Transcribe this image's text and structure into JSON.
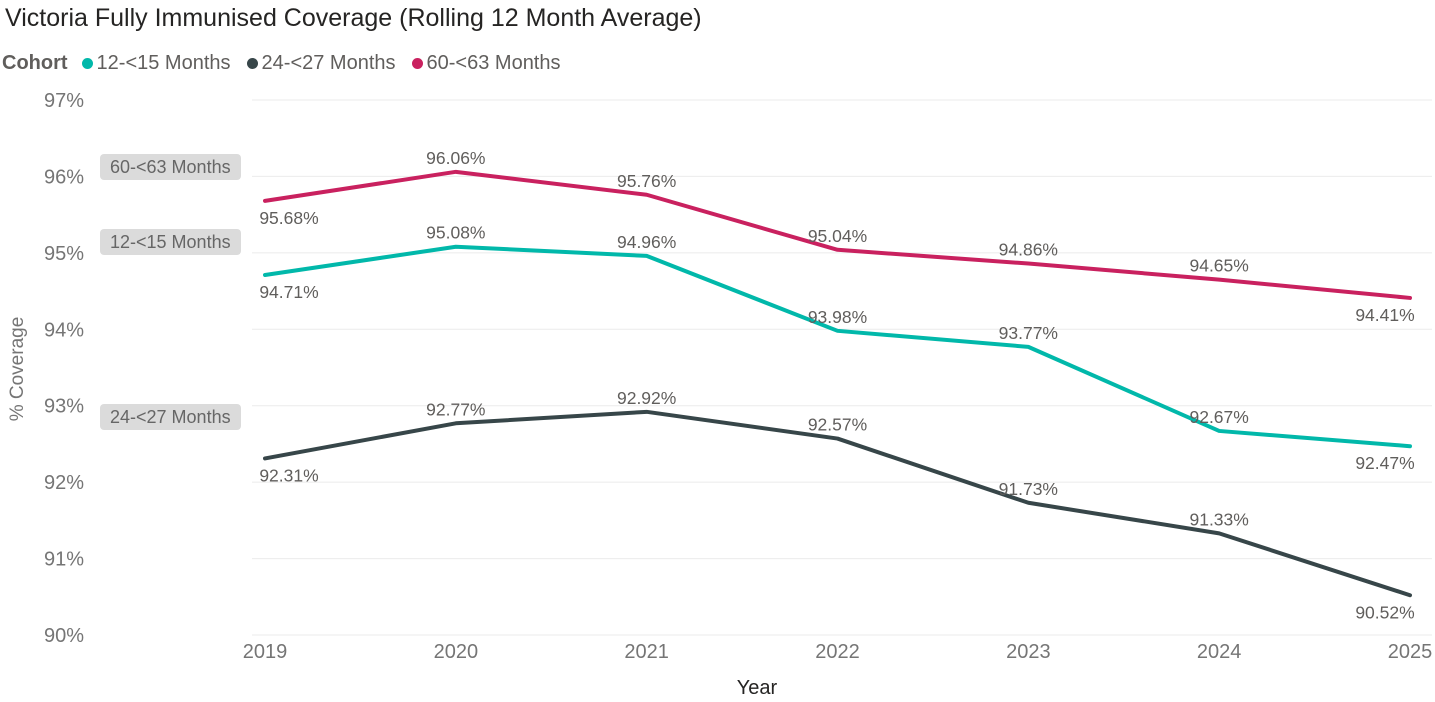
{
  "title": "Victoria Fully Immunised Coverage (Rolling 12 Month Average)",
  "legend": {
    "title": "Cohort",
    "position": "top"
  },
  "colors": {
    "teal": "#01B8AA",
    "dark": "#374649",
    "pink": "#C9215F",
    "title_text": "#252423",
    "axis_text": "#757575",
    "data_label_text": "#605E5C",
    "gridline": "#EBEBEB",
    "pill_background": "#DBDBDB",
    "pill_text": "#666666"
  },
  "chart_data": {
    "type": "line",
    "x": [
      2019,
      2020,
      2021,
      2022,
      2023,
      2024,
      2025
    ],
    "series": [
      {
        "name": "12-<15 Months",
        "color": "#01B8AA",
        "values": [
          94.71,
          95.08,
          94.96,
          93.98,
          93.77,
          92.67,
          92.47
        ]
      },
      {
        "name": "24-<27 Months",
        "color": "#374649",
        "values": [
          92.31,
          92.77,
          92.92,
          92.57,
          91.73,
          91.33,
          90.52
        ]
      },
      {
        "name": "60-<63 Months",
        "color": "#C9215F",
        "values": [
          95.68,
          96.06,
          95.76,
          95.04,
          94.86,
          94.65,
          94.41
        ]
      }
    ],
    "title": "Victoria Fully Immunised Coverage (Rolling 12 Month Average)",
    "xlabel": "Year",
    "ylabel": "% Coverage",
    "ylim": [
      90,
      97
    ],
    "ytick_labels": [
      "90%",
      "91%",
      "92%",
      "93%",
      "94%",
      "95%",
      "96%",
      "97%"
    ],
    "ytick_step": 1,
    "grid": "horizontal",
    "legend_position": "top",
    "data_labels": "all-points, first and last point labeled below the line, others above",
    "series_pills": [
      "60-<63 Months",
      "12-<15 Months",
      "24-<27 Months"
    ]
  }
}
